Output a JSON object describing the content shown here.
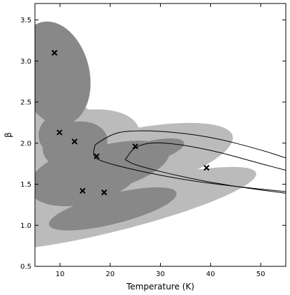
{
  "chart_data": {
    "type": "scatter",
    "title": "",
    "xlabel": "Temperature (K)",
    "ylabel": "β",
    "xlim": [
      5,
      55
    ],
    "ylim": [
      0.5,
      3.7
    ],
    "grid": false,
    "xticks": [
      10,
      20,
      30,
      40,
      50
    ],
    "xtick_labels": [
      "10",
      "20",
      "30",
      "40",
      "50"
    ],
    "yticks": [
      0.5,
      1.0,
      1.5,
      2.0,
      2.5,
      3.0,
      3.5
    ],
    "ytick_labels": [
      "0.5",
      "1.0",
      "1.5",
      "2.0",
      "2.5",
      "3.0",
      "3.5"
    ],
    "points": [
      {
        "x": 8.9,
        "y": 3.1
      },
      {
        "x": 9.9,
        "y": 2.13
      },
      {
        "x": 12.9,
        "y": 2.02
      },
      {
        "x": 14.5,
        "y": 1.42
      },
      {
        "x": 17.3,
        "y": 1.84
      },
      {
        "x": 18.8,
        "y": 1.4
      },
      {
        "x": 25.0,
        "y": 1.96
      },
      {
        "x": 39.2,
        "y": 1.7
      }
    ],
    "contour_regions": [
      {
        "cx": 8.8,
        "cy": 2.85,
        "a": 10.5,
        "b": 0.43,
        "angle": -104,
        "level": "inner"
      },
      {
        "cx": 9.8,
        "cy": 2.1,
        "a": 6.5,
        "b": 0.5,
        "angle": -104,
        "level": "outer"
      },
      {
        "cx": 9.8,
        "cy": 2.1,
        "a": 4.0,
        "b": 0.25,
        "angle": -104,
        "level": "inner"
      },
      {
        "cx": 13.0,
        "cy": 1.98,
        "a": 6.5,
        "b": 0.8,
        "angle": -104,
        "level": "outer"
      },
      {
        "cx": 13.0,
        "cy": 1.98,
        "a": 4.5,
        "b": 0.4,
        "angle": -104,
        "level": "inner"
      },
      {
        "cx": 15.0,
        "cy": 1.6,
        "a": 7.5,
        "b": 1.6,
        "angle": -104,
        "level": "outer"
      },
      {
        "cx": 15.0,
        "cy": 1.6,
        "a": 5.5,
        "b": 0.7,
        "angle": -104,
        "level": "inner"
      },
      {
        "cx": 19.0,
        "cy": 1.7,
        "a": 6.5,
        "b": 1.6,
        "angle": -104,
        "level": "outer"
      },
      {
        "cx": 19.0,
        "cy": 1.7,
        "a": 4.5,
        "b": 0.8,
        "angle": -104,
        "level": "inner"
      },
      {
        "cx": 20.5,
        "cy": 1.2,
        "a": 4.5,
        "b": 1.8,
        "angle": -104,
        "level": "outer"
      },
      {
        "cx": 20.5,
        "cy": 1.2,
        "a": 3.0,
        "b": 0.8,
        "angle": -104,
        "level": "inner"
      },
      {
        "cx": 27.0,
        "cy": 1.88,
        "a": 13.0,
        "b": 0.24,
        "angle": -15,
        "level": "outer"
      },
      {
        "cx": 27.0,
        "cy": 1.88,
        "a": 8.0,
        "b": 0.13,
        "angle": -15,
        "level": "inner"
      }
    ],
    "contour_lines": [
      {
        "points": [
          [
            17,
            1.98
          ],
          [
            20,
            2.1
          ],
          [
            23,
            2.15
          ],
          [
            30,
            2.15
          ],
          [
            40,
            2.08
          ],
          [
            50,
            1.92
          ],
          [
            55,
            1.82
          ]
        ]
      },
      {
        "points": [
          [
            17,
            1.98
          ],
          [
            16.5,
            1.85
          ],
          [
            18,
            1.78
          ],
          [
            25,
            1.67
          ],
          [
            35,
            1.55
          ],
          [
            45,
            1.47
          ],
          [
            55,
            1.41
          ]
        ]
      },
      {
        "points": [
          [
            23,
            1.8
          ],
          [
            25,
            1.97
          ],
          [
            30,
            2.02
          ],
          [
            40,
            1.92
          ],
          [
            50,
            1.75
          ],
          [
            55,
            1.67
          ]
        ]
      },
      {
        "points": [
          [
            23,
            1.8
          ],
          [
            25,
            1.73
          ],
          [
            35,
            1.58
          ],
          [
            45,
            1.47
          ],
          [
            55,
            1.39
          ]
        ]
      }
    ],
    "colors": {
      "outer": "#bbbbbb",
      "inner": "#888888",
      "marker": "#000000",
      "line": "#000000"
    }
  }
}
